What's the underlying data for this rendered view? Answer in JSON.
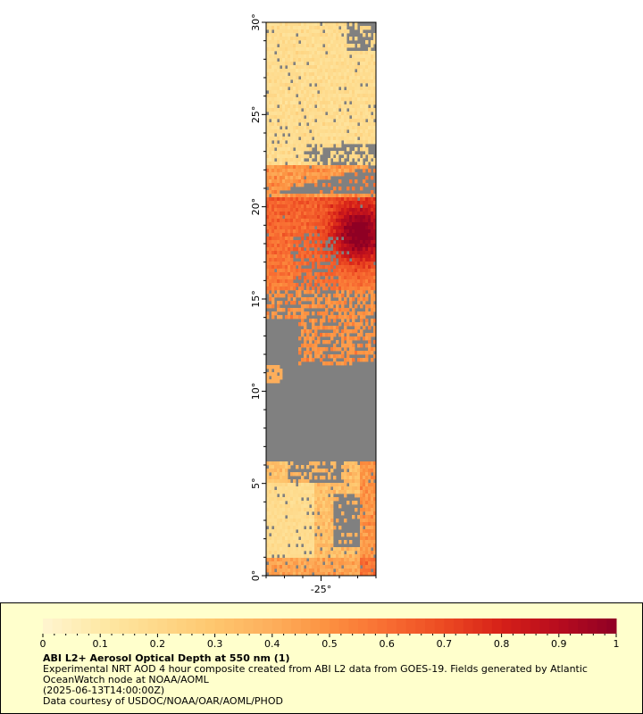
{
  "map": {
    "lat_range": [
      0,
      30
    ],
    "lon_range": [
      -28,
      -22
    ],
    "no_data_color": "#808080",
    "y_ticks": [
      "0°",
      "5°",
      "10°",
      "15°",
      "20°",
      "25°",
      "30°"
    ],
    "x_ticks": [
      "-25°"
    ]
  },
  "colorbar": {
    "min": 0,
    "max": 1,
    "labels": [
      "0",
      "0.1",
      "0.2",
      "0.3",
      "0.4",
      "0.5",
      "0.6",
      "0.7",
      "0.8",
      "0.9",
      "1"
    ],
    "colors": [
      "#fff5d0",
      "#fee9a6",
      "#fed98a",
      "#fec66e",
      "#fdae5b",
      "#fc9040",
      "#f86d32",
      "#ec4a22",
      "#d62018",
      "#b70c1e",
      "#8f0024"
    ]
  },
  "legend": {
    "title": "ABI L2+ Aerosol Optical Depth at 550 nm (1)",
    "line1": "Experimental NRT AOD 4 hour composite created from ABI L2 data from GOES-19. Fields generated by Atlantic",
    "line2": "OceanWatch node at NOAA/AOML",
    "line3": "(2025-06-13T14:00:00Z)",
    "line4": "Data courtesy of USDOC/NOAA/OAR/AOML/PHOD"
  }
}
